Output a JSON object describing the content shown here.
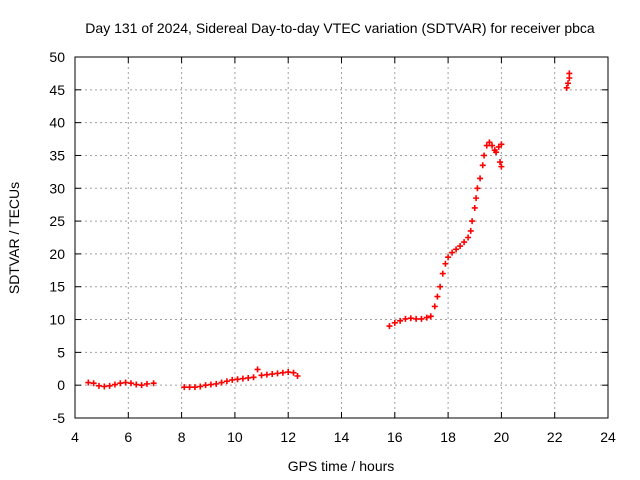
{
  "chart_data": {
    "type": "scatter",
    "title": "Day 131 of 2024, Sidereal Day-to-day VTEC variation (SDTVAR) for receiver pbca",
    "xlabel": "GPS time / hours",
    "ylabel": "SDTVAR / TECUs",
    "xlim": [
      4,
      24
    ],
    "ylim": [
      -5,
      50
    ],
    "xticks": [
      4,
      6,
      8,
      10,
      12,
      14,
      16,
      18,
      20,
      22,
      24
    ],
    "yticks": [
      -5,
      0,
      5,
      10,
      15,
      20,
      25,
      30,
      35,
      40,
      45,
      50
    ],
    "grid": true,
    "marker": "+",
    "color": "#ff0000",
    "series": [
      {
        "name": "SDTVAR",
        "points": [
          [
            4.5,
            0.4
          ],
          [
            4.7,
            0.3
          ],
          [
            4.9,
            -0.1
          ],
          [
            5.1,
            -0.2
          ],
          [
            5.3,
            -0.1
          ],
          [
            5.5,
            0.1
          ],
          [
            5.7,
            0.3
          ],
          [
            5.9,
            0.4
          ],
          [
            6.1,
            0.3
          ],
          [
            6.3,
            0.1
          ],
          [
            6.5,
            0.0
          ],
          [
            6.7,
            0.2
          ],
          [
            6.95,
            0.3
          ],
          [
            8.1,
            -0.3
          ],
          [
            8.3,
            -0.3
          ],
          [
            8.5,
            -0.3
          ],
          [
            8.7,
            -0.2
          ],
          [
            8.9,
            0.0
          ],
          [
            9.1,
            0.1
          ],
          [
            9.3,
            0.2
          ],
          [
            9.5,
            0.4
          ],
          [
            9.7,
            0.6
          ],
          [
            9.9,
            0.8
          ],
          [
            10.1,
            0.9
          ],
          [
            10.3,
            1.0
          ],
          [
            10.5,
            1.1
          ],
          [
            10.7,
            1.2
          ],
          [
            10.85,
            2.4
          ],
          [
            11.0,
            1.5
          ],
          [
            11.2,
            1.6
          ],
          [
            11.4,
            1.7
          ],
          [
            11.6,
            1.8
          ],
          [
            11.8,
            1.9
          ],
          [
            12.0,
            2.0
          ],
          [
            12.2,
            1.9
          ],
          [
            12.35,
            1.4
          ],
          [
            15.8,
            9.0
          ],
          [
            16.0,
            9.5
          ],
          [
            16.2,
            9.8
          ],
          [
            16.4,
            10.1
          ],
          [
            16.6,
            10.2
          ],
          [
            16.8,
            10.1
          ],
          [
            17.0,
            10.1
          ],
          [
            17.2,
            10.3
          ],
          [
            17.35,
            10.5
          ],
          [
            17.5,
            12.0
          ],
          [
            17.6,
            13.5
          ],
          [
            17.7,
            15.0
          ],
          [
            17.8,
            17.0
          ],
          [
            17.9,
            18.5
          ],
          [
            18.0,
            19.5
          ],
          [
            18.15,
            20.2
          ],
          [
            18.3,
            20.7
          ],
          [
            18.45,
            21.2
          ],
          [
            18.6,
            21.8
          ],
          [
            18.75,
            22.5
          ],
          [
            18.85,
            23.5
          ],
          [
            18.9,
            25.0
          ],
          [
            19.0,
            27.0
          ],
          [
            19.05,
            28.5
          ],
          [
            19.1,
            30.0
          ],
          [
            19.2,
            31.5
          ],
          [
            19.3,
            33.5
          ],
          [
            19.35,
            35.0
          ],
          [
            19.45,
            36.5
          ],
          [
            19.55,
            37.0
          ],
          [
            19.65,
            36.5
          ],
          [
            19.8,
            35.5
          ],
          [
            19.95,
            34.0
          ],
          [
            20.0,
            33.3
          ],
          [
            19.75,
            35.8
          ],
          [
            19.9,
            36.3
          ],
          [
            20.0,
            36.7
          ],
          [
            22.45,
            45.3
          ],
          [
            22.5,
            46.0
          ],
          [
            22.55,
            46.8
          ],
          [
            22.55,
            47.5
          ]
        ]
      }
    ]
  }
}
